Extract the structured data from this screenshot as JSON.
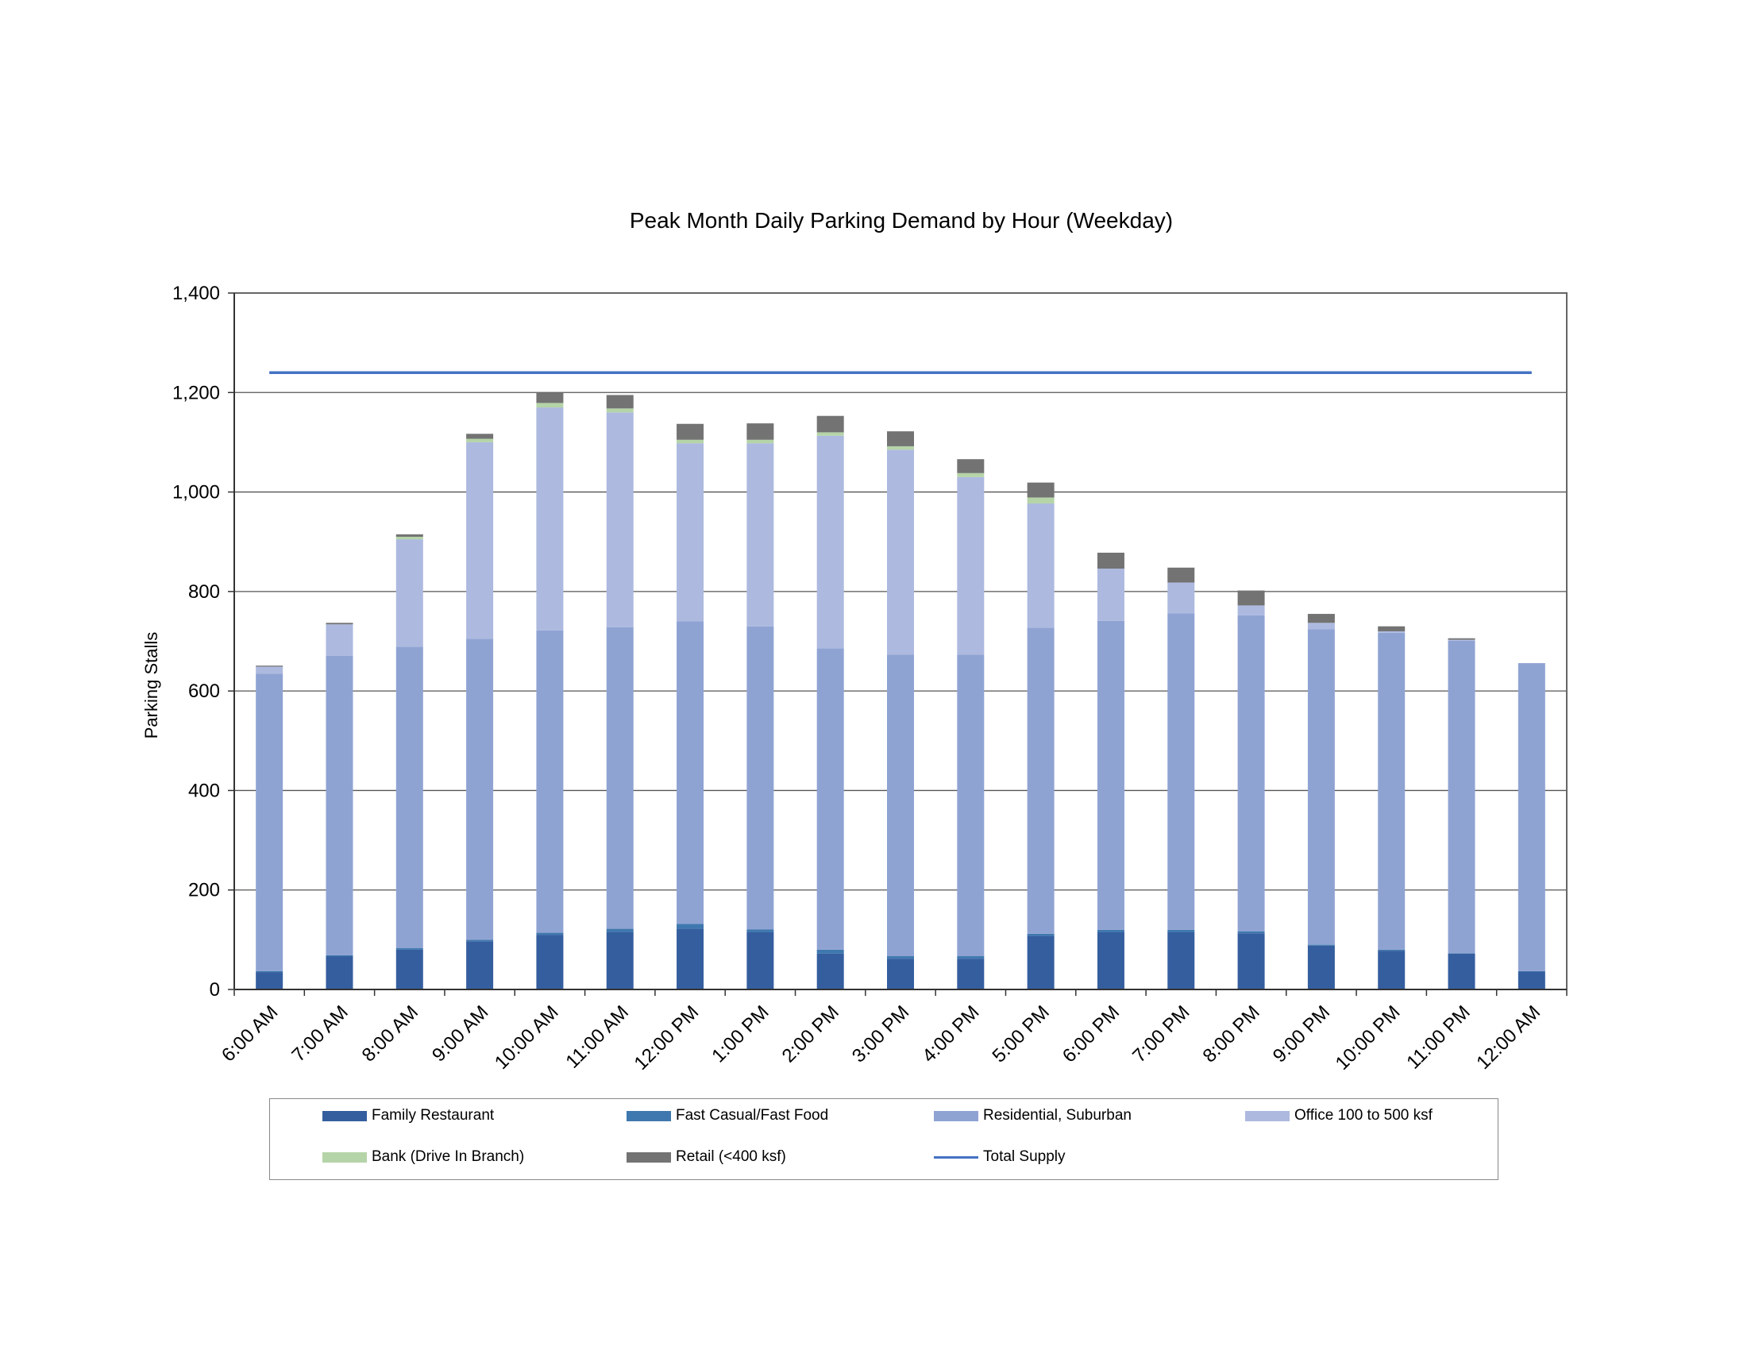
{
  "chart_data": {
    "type": "bar",
    "stacked": true,
    "title": "Peak Month Daily Parking Demand by Hour (Weekday)",
    "xlabel": "",
    "ylabel": "Parking Stalls",
    "ylim": [
      0,
      1400
    ],
    "yticks": [
      0,
      200,
      400,
      600,
      800,
      1000,
      1200,
      1400
    ],
    "ytick_labels": [
      "0",
      "200",
      "400",
      "600",
      "800",
      "1,000",
      "1,200",
      "1,400"
    ],
    "grid": true,
    "legend_position": "bottom",
    "categories": [
      "6:00 AM",
      "7:00 AM",
      "8:00 AM",
      "9:00 AM",
      "10:00 AM",
      "11:00 AM",
      "12:00 PM",
      "1:00 PM",
      "2:00 PM",
      "3:00 PM",
      "4:00 PM",
      "5:00 PM",
      "6:00 PM",
      "7:00 PM",
      "8:00 PM",
      "9:00 PM",
      "10:00 PM",
      "11:00 PM",
      "12:00 AM"
    ],
    "series": [
      {
        "name": "Family Restaurant",
        "color": "#355E9F",
        "values": [
          35,
          67,
          80,
          97,
          110,
          115,
          122,
          115,
          72,
          62,
          62,
          108,
          115,
          115,
          113,
          88,
          78,
          72,
          36
        ]
      },
      {
        "name": "Fast Casual/Fast Food",
        "color": "#3F78AE",
        "values": [
          2,
          2,
          3,
          3,
          4,
          7,
          10,
          6,
          8,
          5,
          5,
          4,
          5,
          5,
          4,
          2,
          2,
          1,
          1
        ]
      },
      {
        "name": "Residential, Suburban",
        "color": "#8FA3D3",
        "values": [
          598,
          602,
          606,
          605,
          608,
          606,
          608,
          609,
          606,
          606,
          606,
          615,
          621,
          636,
          635,
          634,
          637,
          628,
          619
        ]
      },
      {
        "name": "Office 100 to 500 ksf",
        "color": "#ADB9DF",
        "values": [
          14,
          63,
          216,
          395,
          448,
          432,
          358,
          368,
          427,
          412,
          357,
          250,
          105,
          62,
          20,
          13,
          3,
          2,
          0
        ]
      },
      {
        "name": "Bank (Drive In Branch)",
        "color": "#B5D4A8",
        "values": [
          0,
          0,
          5,
          7,
          9,
          8,
          7,
          7,
          7,
          7,
          8,
          12,
          0,
          0,
          0,
          0,
          0,
          0,
          0
        ]
      },
      {
        "name": "Retail (<400 ksf)",
        "color": "#737373",
        "values": [
          2,
          3,
          5,
          10,
          20,
          27,
          32,
          33,
          33,
          30,
          28,
          30,
          32,
          30,
          30,
          18,
          10,
          3,
          0
        ]
      }
    ],
    "lines": [
      {
        "name": "Total Supply",
        "color": "#4472C4",
        "values": [
          1240,
          1240,
          1240,
          1240,
          1240,
          1240,
          1240,
          1240,
          1240,
          1240,
          1240,
          1240,
          1240,
          1240,
          1240,
          1240,
          1240,
          1240,
          1240
        ]
      }
    ]
  }
}
